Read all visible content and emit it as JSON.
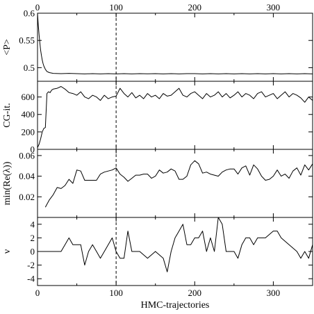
{
  "chart_data": [
    {
      "type": "line",
      "panel": "plaquette",
      "ylabel": "<P>",
      "xlim": [
        0,
        350
      ],
      "ylim": [
        0.475,
        0.6
      ],
      "yticks": [
        0.5,
        0.55,
        0.6
      ],
      "ytick_labels": [
        "0.5",
        "0.55",
        "0.6"
      ],
      "xticks": [
        0,
        100,
        200,
        300
      ],
      "xtick_labels_top": [
        "0",
        "100",
        "200",
        "300"
      ],
      "vline_x": 100,
      "series": [
        {
          "x": [
            0,
            1,
            2,
            3,
            4,
            5,
            6,
            7,
            8,
            10,
            12,
            15,
            20,
            30,
            40,
            50,
            60,
            70,
            80,
            90,
            100,
            110,
            120,
            130,
            140,
            150,
            160,
            170,
            180,
            190,
            200,
            210,
            220,
            230,
            240,
            250,
            260,
            270,
            280,
            290,
            300,
            310,
            320,
            330,
            340,
            350
          ],
          "y": [
            0.6,
            0.578,
            0.56,
            0.545,
            0.532,
            0.522,
            0.514,
            0.508,
            0.503,
            0.497,
            0.493,
            0.491,
            0.4895,
            0.489,
            0.4895,
            0.489,
            0.4885,
            0.489,
            0.4885,
            0.489,
            0.4885,
            0.489,
            0.4885,
            0.489,
            0.4888,
            0.489,
            0.4885,
            0.489,
            0.4885,
            0.489,
            0.489,
            0.4885,
            0.489,
            0.4885,
            0.489,
            0.4885,
            0.489,
            0.4885,
            0.489,
            0.4885,
            0.489,
            0.4885,
            0.489,
            0.4885,
            0.489,
            0.4885
          ]
        }
      ]
    },
    {
      "type": "line",
      "panel": "cg-iterations",
      "ylabel": "CG-it.",
      "xlim": [
        0,
        350
      ],
      "ylim": [
        0,
        780
      ],
      "yticks": [
        0,
        200,
        400,
        600
      ],
      "ytick_labels": [
        "0",
        "200",
        "400",
        "600"
      ],
      "vline_x": 100,
      "series": [
        {
          "x": [
            0,
            2,
            4,
            6,
            8,
            10,
            12,
            14,
            16,
            18,
            20,
            25,
            30,
            35,
            40,
            45,
            50,
            55,
            60,
            65,
            70,
            75,
            80,
            85,
            90,
            95,
            100,
            105,
            110,
            115,
            120,
            125,
            130,
            135,
            140,
            145,
            150,
            155,
            160,
            165,
            170,
            175,
            180,
            185,
            190,
            195,
            200,
            205,
            210,
            215,
            220,
            225,
            230,
            235,
            240,
            245,
            250,
            255,
            260,
            265,
            270,
            275,
            280,
            285,
            290,
            295,
            300,
            305,
            310,
            315,
            320,
            325,
            330,
            335,
            340,
            345,
            350
          ],
          "y": [
            20,
            60,
            120,
            200,
            240,
            250,
            640,
            660,
            650,
            680,
            690,
            700,
            720,
            690,
            650,
            640,
            620,
            660,
            600,
            580,
            620,
            600,
            560,
            620,
            580,
            600,
            610,
            700,
            640,
            600,
            650,
            590,
            620,
            580,
            640,
            600,
            620,
            580,
            640,
            610,
            620,
            660,
            700,
            620,
            600,
            640,
            660,
            620,
            580,
            640,
            600,
            620,
            660,
            600,
            640,
            590,
            620,
            660,
            600,
            640,
            620,
            580,
            640,
            660,
            600,
            620,
            640,
            580,
            620,
            660,
            600,
            640,
            620,
            590,
            540,
            600,
            560
          ]
        }
      ]
    },
    {
      "type": "line",
      "panel": "min-eigenvalue",
      "ylabel": "min(Re(λ))",
      "xlim": [
        0,
        350
      ],
      "ylim": [
        0,
        0.066
      ],
      "yticks": [
        0.02,
        0.04,
        0.06
      ],
      "ytick_labels": [
        "0.02",
        "0.04",
        "0.06"
      ],
      "vline_x": 100,
      "series": [
        {
          "x": [
            10,
            15,
            20,
            25,
            30,
            35,
            40,
            45,
            50,
            55,
            60,
            65,
            70,
            75,
            80,
            85,
            90,
            95,
            100,
            105,
            110,
            115,
            120,
            125,
            130,
            135,
            140,
            145,
            150,
            155,
            160,
            165,
            170,
            175,
            180,
            185,
            190,
            195,
            200,
            205,
            210,
            215,
            220,
            225,
            230,
            235,
            240,
            245,
            250,
            255,
            260,
            265,
            270,
            275,
            280,
            285,
            290,
            295,
            300,
            305,
            310,
            315,
            320,
            325,
            330,
            335,
            340,
            345,
            350
          ],
          "y": [
            0.01,
            0.017,
            0.022,
            0.029,
            0.028,
            0.031,
            0.037,
            0.033,
            0.046,
            0.045,
            0.036,
            0.036,
            0.036,
            0.036,
            0.042,
            0.044,
            0.045,
            0.046,
            0.048,
            0.042,
            0.039,
            0.035,
            0.038,
            0.041,
            0.041,
            0.042,
            0.042,
            0.038,
            0.04,
            0.046,
            0.043,
            0.044,
            0.047,
            0.045,
            0.037,
            0.037,
            0.04,
            0.051,
            0.055,
            0.052,
            0.043,
            0.044,
            0.042,
            0.041,
            0.04,
            0.044,
            0.046,
            0.047,
            0.047,
            0.042,
            0.048,
            0.05,
            0.041,
            0.051,
            0.047,
            0.04,
            0.036,
            0.037,
            0.04,
            0.046,
            0.04,
            0.042,
            0.038,
            0.045,
            0.048,
            0.041,
            0.051,
            0.046,
            0.052
          ]
        }
      ]
    },
    {
      "type": "line",
      "panel": "topological-charge",
      "ylabel": "ν",
      "xlabel": "HMC-trajectories",
      "xlim": [
        0,
        350
      ],
      "ylim": [
        -5,
        5
      ],
      "yticks": [
        -4,
        -2,
        0,
        2,
        4
      ],
      "ytick_labels": [
        "-4",
        "-2",
        "0",
        "2",
        "4"
      ],
      "xticks": [
        0,
        100,
        200,
        300
      ],
      "xtick_labels": [
        "0",
        "100",
        "200",
        "300"
      ],
      "vline_x": 100,
      "series": [
        {
          "x": [
            0,
            10,
            20,
            30,
            35,
            40,
            45,
            50,
            55,
            60,
            65,
            70,
            75,
            80,
            85,
            90,
            95,
            100,
            105,
            110,
            115,
            120,
            125,
            130,
            140,
            150,
            160,
            165,
            170,
            175,
            180,
            185,
            190,
            195,
            200,
            205,
            210,
            215,
            220,
            225,
            230,
            235,
            240,
            245,
            250,
            255,
            260,
            265,
            270,
            275,
            280,
            290,
            300,
            305,
            310,
            320,
            330,
            335,
            340,
            345,
            350
          ],
          "y": [
            0,
            0,
            0,
            0,
            1,
            2,
            1,
            1,
            1,
            -2,
            0,
            1,
            0,
            -1,
            0,
            1,
            2,
            0,
            -1,
            -1,
            3,
            0,
            0,
            0,
            -1,
            0,
            -1,
            -3,
            0,
            2,
            3,
            4,
            1,
            1,
            2,
            2,
            3,
            0,
            2,
            0,
            5,
            4,
            0,
            0,
            0,
            -1,
            1,
            2,
            2,
            1,
            2,
            2,
            3,
            3,
            2,
            1,
            0,
            -1,
            0,
            -1,
            1
          ]
        }
      ]
    }
  ]
}
